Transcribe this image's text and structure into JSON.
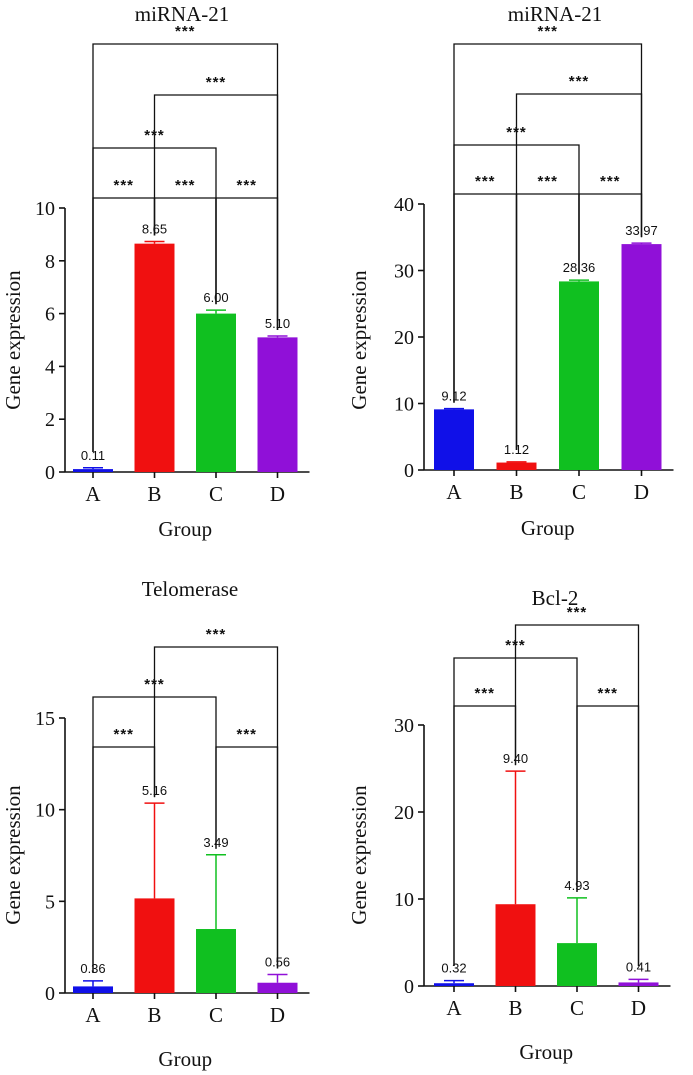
{
  "chart_data": [
    {
      "type": "bar",
      "title": "miRNA-21",
      "xlabel": "Group",
      "ylabel": "Gene expression",
      "categories": [
        "A",
        "B",
        "C",
        "D"
      ],
      "values": [
        0.11,
        8.65,
        6.0,
        5.1
      ],
      "value_labels": [
        "0.11",
        "8.65",
        "6.00",
        "5.10"
      ],
      "errors": [
        0.05,
        0.08,
        0.13,
        0.05
      ],
      "colors": [
        "#1010e8",
        "#f01010",
        "#10c020",
        "#9010d8"
      ],
      "ylim": [
        0,
        10
      ],
      "yticks": [
        0,
        2,
        4,
        6,
        8,
        10
      ],
      "comparisons": [
        {
          "groups": [
            "A",
            "B"
          ],
          "label": "***"
        },
        {
          "groups": [
            "B",
            "C"
          ],
          "label": "***"
        },
        {
          "groups": [
            "C",
            "D"
          ],
          "label": "***"
        },
        {
          "groups": [
            "A",
            "C"
          ],
          "label": "***"
        },
        {
          "groups": [
            "B",
            "D"
          ],
          "label": "***"
        },
        {
          "groups": [
            "A",
            "D"
          ],
          "label": "***"
        }
      ]
    },
    {
      "type": "bar",
      "title": "miRNA-21",
      "xlabel": "Group",
      "ylabel": "Gene expression",
      "categories": [
        "A",
        "B",
        "C",
        "D"
      ],
      "values": [
        9.12,
        1.12,
        28.36,
        33.97
      ],
      "value_labels": [
        "9.12",
        "1.12",
        "28.36",
        "33.97"
      ],
      "errors": [
        0.1,
        0.1,
        0.2,
        0.15
      ],
      "colors": [
        "#1010e8",
        "#f01010",
        "#10c020",
        "#9010d8"
      ],
      "ylim": [
        0,
        40
      ],
      "yticks": [
        0,
        10,
        20,
        30,
        40
      ],
      "comparisons": [
        {
          "groups": [
            "A",
            "B"
          ],
          "label": "***"
        },
        {
          "groups": [
            "B",
            "C"
          ],
          "label": "***"
        },
        {
          "groups": [
            "C",
            "D"
          ],
          "label": "***"
        },
        {
          "groups": [
            "A",
            "C"
          ],
          "label": "***"
        },
        {
          "groups": [
            "B",
            "D"
          ],
          "label": "***"
        },
        {
          "groups": [
            "A",
            "D"
          ],
          "label": "***"
        }
      ]
    },
    {
      "type": "bar",
      "title": "Telomerase",
      "xlabel": "Group",
      "ylabel": "Gene expression",
      "categories": [
        "A",
        "B",
        "C",
        "D"
      ],
      "values": [
        0.36,
        5.16,
        3.49,
        0.56
      ],
      "value_labels": [
        "0.36",
        "5.16",
        "3.49",
        "0.56"
      ],
      "errors": [
        0.3,
        5.2,
        4.05,
        0.45
      ],
      "colors": [
        "#1010e8",
        "#f01010",
        "#10c020",
        "#9010d8"
      ],
      "ylim": [
        0,
        15
      ],
      "yticks": [
        0,
        5,
        10,
        15
      ],
      "comparisons": [
        {
          "groups": [
            "A",
            "B"
          ],
          "label": "***"
        },
        {
          "groups": [
            "C",
            "D"
          ],
          "label": "***"
        },
        {
          "groups": [
            "A",
            "C"
          ],
          "label": "***"
        },
        {
          "groups": [
            "B",
            "D"
          ],
          "label": "***"
        }
      ]
    },
    {
      "type": "bar",
      "title": "Bcl-2",
      "xlabel": "Group",
      "ylabel": "Gene expression",
      "categories": [
        "A",
        "B",
        "C",
        "D"
      ],
      "values": [
        0.32,
        9.4,
        4.93,
        0.41
      ],
      "value_labels": [
        "0.32",
        "9.40",
        "4.93",
        "0.41"
      ],
      "errors": [
        0.3,
        15.3,
        5.2,
        0.35
      ],
      "colors": [
        "#1010e8",
        "#f01010",
        "#10c020",
        "#9010d8"
      ],
      "ylim": [
        0,
        30
      ],
      "yticks": [
        0,
        10,
        20,
        30
      ],
      "comparisons": [
        {
          "groups": [
            "A",
            "B"
          ],
          "label": "***"
        },
        {
          "groups": [
            "C",
            "D"
          ],
          "label": "***"
        },
        {
          "groups": [
            "A",
            "C"
          ],
          "label": "***"
        },
        {
          "groups": [
            "B",
            "D"
          ],
          "label": "***"
        }
      ]
    }
  ]
}
